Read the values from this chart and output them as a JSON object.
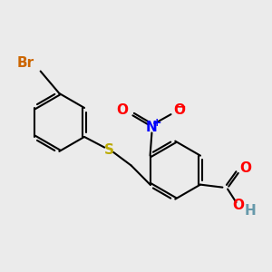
{
  "bg_color": "#ebebeb",
  "bond_color": "#000000",
  "atom_colors": {
    "Br": "#cc6600",
    "S": "#bbaa00",
    "N": "#0000ff",
    "O": "#ff0000",
    "H": "#6699aa",
    "C": "#000000"
  },
  "bond_width": 1.5,
  "font_size": 11,
  "font_size_charge": 9
}
